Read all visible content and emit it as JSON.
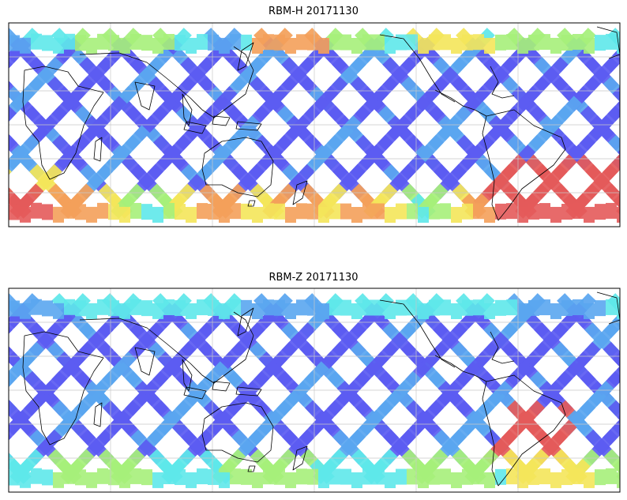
{
  "panels": [
    {
      "title": "RBM-H 20171130"
    },
    {
      "title": "RBM-Z 20171130"
    }
  ],
  "colormap": [
    "#5c5cf2",
    "#5aa6f0",
    "#5ee8ea",
    "#a6f07a",
    "#f4e65a",
    "#f4a05a",
    "#e45a5a"
  ],
  "map": {
    "lon_range": [
      -180,
      180
    ],
    "lat_range": [
      -60,
      60
    ],
    "grid": true,
    "gridline_color": "#c8c8c8",
    "coastline_color": "#000000"
  }
}
